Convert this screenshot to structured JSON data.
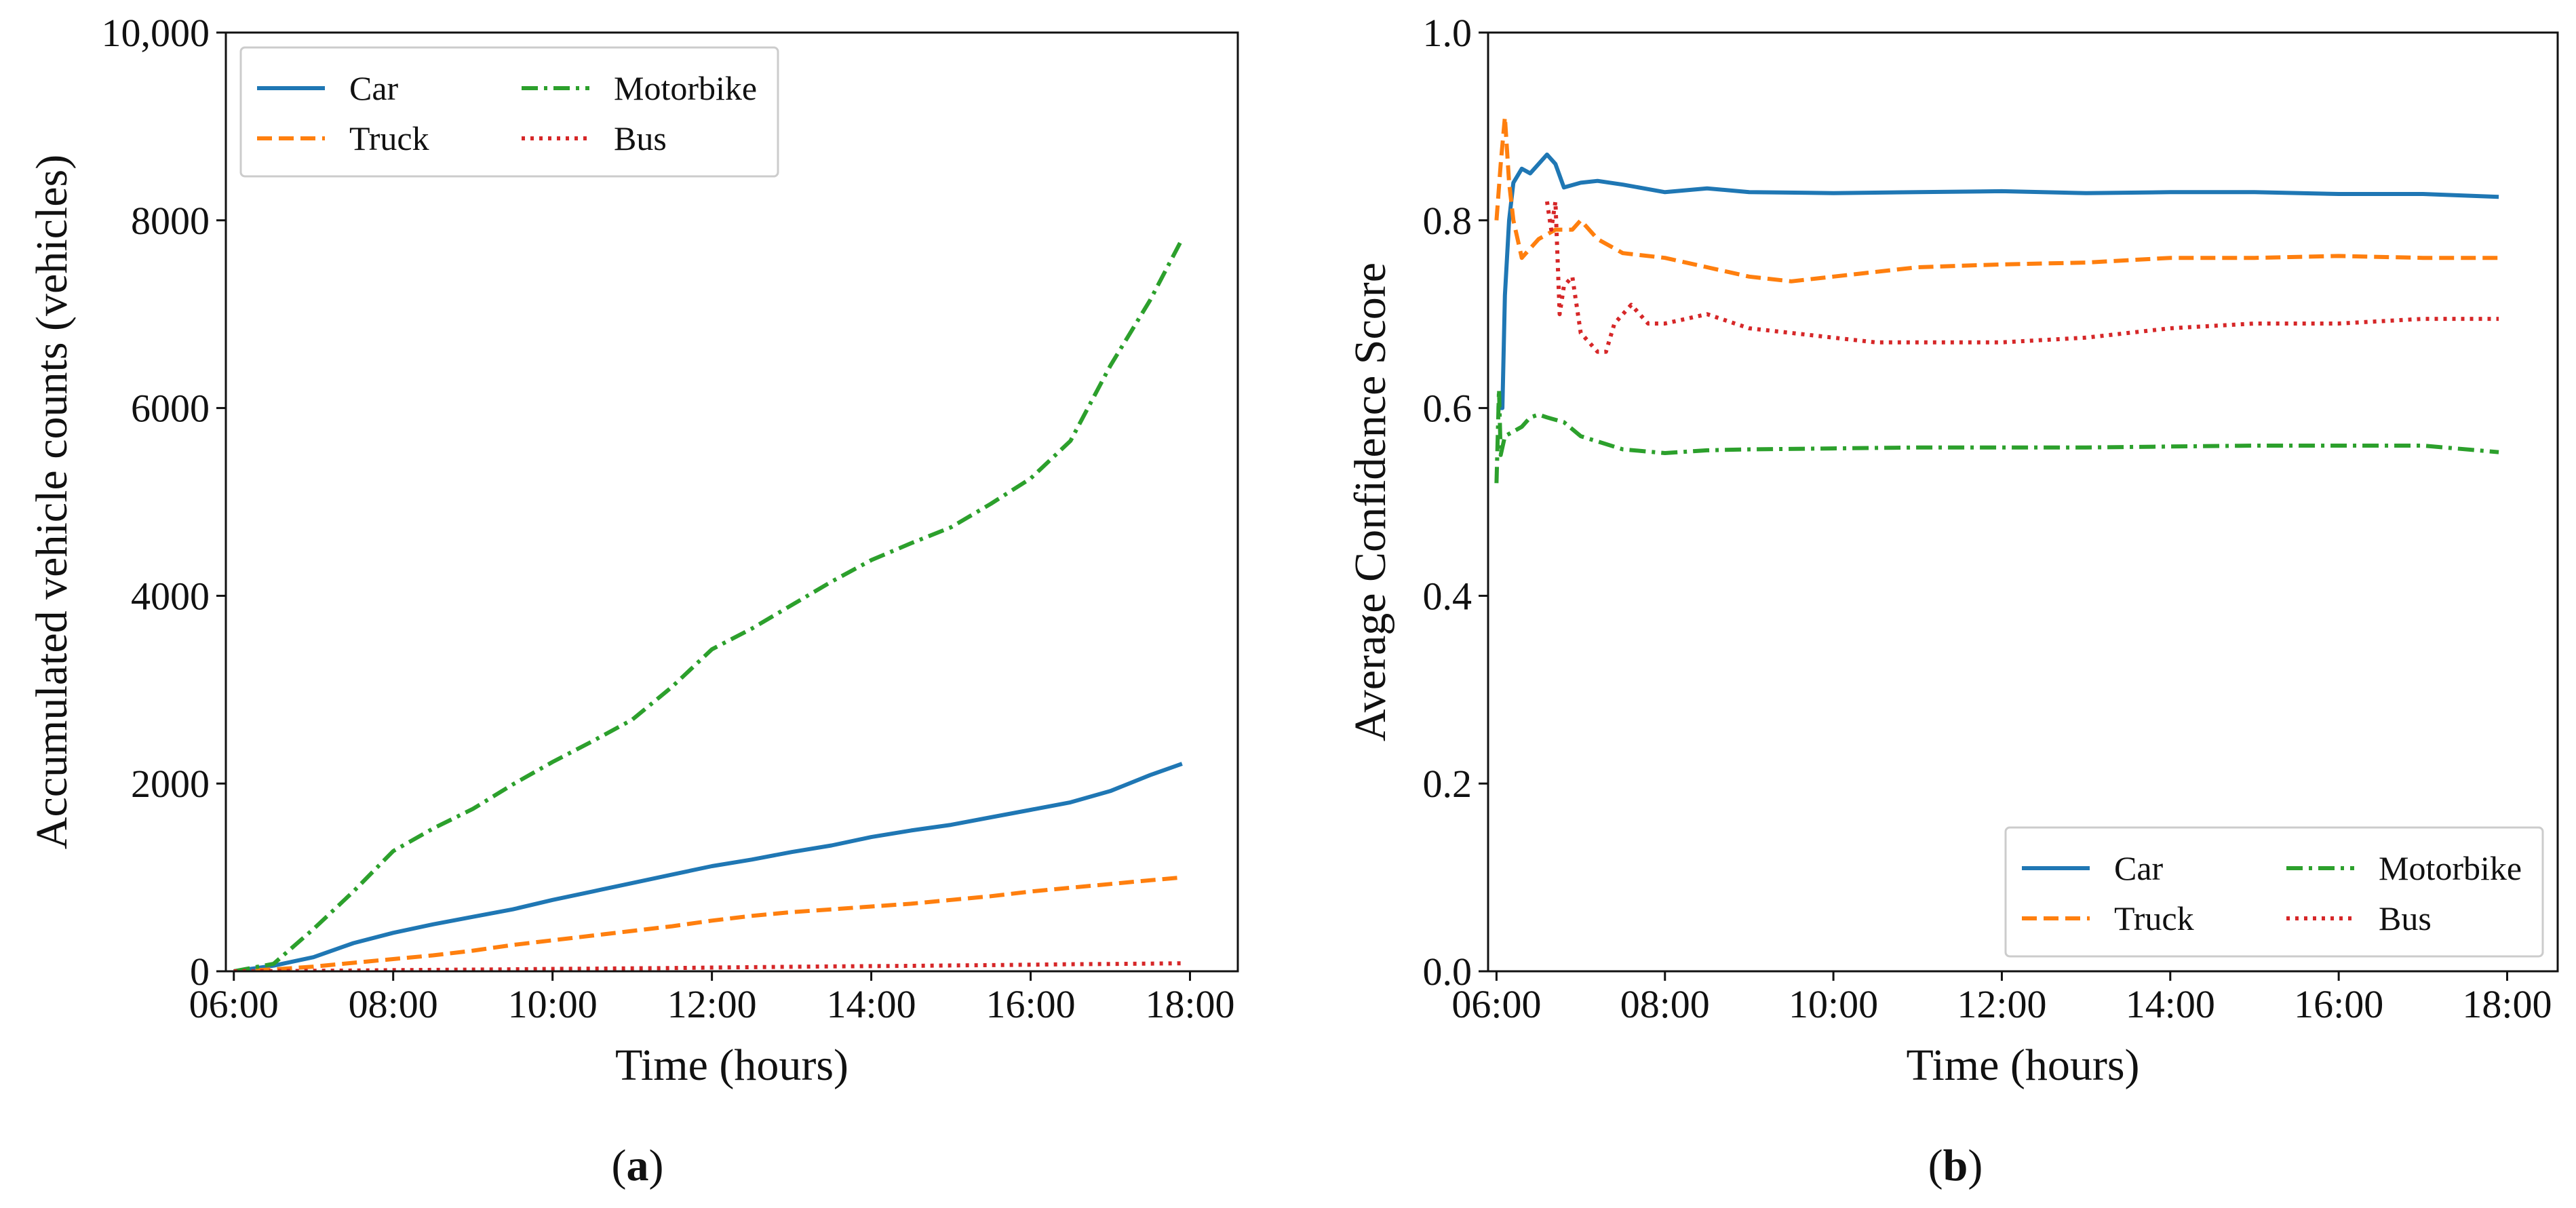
{
  "chart_data": [
    {
      "type": "line",
      "panel_label": "(a)",
      "panel_letter": "a",
      "xlabel": "Time (hours)",
      "ylabel": "Accumulated vehicle counts (vehicles)",
      "xlim": [
        5.9,
        18.6
      ],
      "ylim": [
        0,
        10000
      ],
      "xticks": [
        6,
        8,
        10,
        12,
        14,
        16,
        18
      ],
      "xtick_labels": [
        "06:00",
        "08:00",
        "10:00",
        "12:00",
        "14:00",
        "16:00",
        "18:00"
      ],
      "yticks": [
        0,
        2000,
        4000,
        6000,
        8000,
        10000
      ],
      "ytick_labels": [
        "0",
        "2000",
        "4000",
        "6000",
        "8000",
        "10,000"
      ],
      "legend_position": "upper-left",
      "legend_columns": 2,
      "series": [
        {
          "name": "Car",
          "color": "#1f77b4",
          "style": "solid",
          "x": [
            6.0,
            6.5,
            7.0,
            7.5,
            8.0,
            8.5,
            9.0,
            9.5,
            10.0,
            10.5,
            11.0,
            11.5,
            12.0,
            12.5,
            13.0,
            13.5,
            14.0,
            14.5,
            15.0,
            15.5,
            16.0,
            16.5,
            17.0,
            17.5,
            17.9
          ],
          "y": [
            0,
            60,
            150,
            300,
            410,
            500,
            580,
            660,
            760,
            850,
            940,
            1030,
            1120,
            1190,
            1270,
            1340,
            1430,
            1500,
            1560,
            1640,
            1720,
            1800,
            1920,
            2090,
            2210
          ]
        },
        {
          "name": "Truck",
          "color": "#ff7f0e",
          "style": "dashed",
          "x": [
            6.0,
            6.5,
            7.0,
            7.5,
            8.0,
            8.5,
            9.0,
            9.5,
            10.0,
            10.5,
            11.0,
            11.5,
            12.0,
            12.5,
            13.0,
            13.5,
            14.0,
            14.5,
            15.0,
            15.5,
            16.0,
            16.5,
            17.0,
            17.5,
            17.9
          ],
          "y": [
            0,
            20,
            50,
            90,
            130,
            170,
            220,
            280,
            330,
            380,
            430,
            480,
            540,
            590,
            630,
            660,
            690,
            720,
            760,
            800,
            850,
            890,
            930,
            970,
            1000
          ]
        },
        {
          "name": "Motorbike",
          "color": "#2ca02c",
          "style": "dashdot",
          "x": [
            6.0,
            6.5,
            7.0,
            7.5,
            8.0,
            8.5,
            9.0,
            9.5,
            10.0,
            10.5,
            11.0,
            11.5,
            12.0,
            12.5,
            13.0,
            13.5,
            14.0,
            14.5,
            15.0,
            15.5,
            16.0,
            16.5,
            17.0,
            17.5,
            17.9
          ],
          "y": [
            0,
            80,
            450,
            850,
            1280,
            1520,
            1730,
            1990,
            2230,
            2450,
            2680,
            3030,
            3430,
            3650,
            3900,
            4150,
            4380,
            4560,
            4730,
            4980,
            5250,
            5650,
            6450,
            7150,
            7800
          ]
        },
        {
          "name": "Bus",
          "color": "#d62728",
          "style": "dotted",
          "x": [
            6.0,
            6.5,
            7.0,
            7.5,
            8.0,
            8.5,
            9.0,
            9.5,
            10.0,
            10.5,
            11.0,
            11.5,
            12.0,
            12.5,
            13.0,
            13.5,
            14.0,
            14.5,
            15.0,
            15.5,
            16.0,
            16.5,
            17.0,
            17.5,
            17.9
          ],
          "y": [
            0,
            2,
            5,
            8,
            12,
            15,
            18,
            21,
            25,
            28,
            32,
            35,
            40,
            44,
            48,
            52,
            55,
            58,
            62,
            66,
            70,
            75,
            78,
            82,
            85
          ]
        }
      ]
    },
    {
      "type": "line",
      "panel_label": "(b)",
      "panel_letter": "b",
      "xlabel": "Time (hours)",
      "ylabel": "Average Confidence Score",
      "xlim": [
        5.9,
        18.6
      ],
      "ylim": [
        0.0,
        1.0
      ],
      "xticks": [
        6,
        8,
        10,
        12,
        14,
        16,
        18
      ],
      "xtick_labels": [
        "06:00",
        "08:00",
        "10:00",
        "12:00",
        "14:00",
        "16:00",
        "18:00"
      ],
      "yticks": [
        0.0,
        0.2,
        0.4,
        0.6,
        0.8,
        1.0
      ],
      "ytick_labels": [
        "0.0",
        "0.2",
        "0.4",
        "0.6",
        "0.8",
        "1.0"
      ],
      "legend_position": "lower-right",
      "legend_columns": 2,
      "series": [
        {
          "name": "Car",
          "color": "#1f77b4",
          "style": "solid",
          "x": [
            6.0,
            6.07,
            6.1,
            6.15,
            6.2,
            6.3,
            6.4,
            6.5,
            6.6,
            6.7,
            6.8,
            7.0,
            7.2,
            7.5,
            8.0,
            8.5,
            9.0,
            10.0,
            11.0,
            12.0,
            13.0,
            14.0,
            15.0,
            16.0,
            17.0,
            17.9
          ],
          "y": [
            0.6,
            0.6,
            0.72,
            0.8,
            0.84,
            0.855,
            0.85,
            0.86,
            0.87,
            0.86,
            0.835,
            0.84,
            0.842,
            0.838,
            0.83,
            0.834,
            0.83,
            0.829,
            0.83,
            0.831,
            0.829,
            0.83,
            0.83,
            0.828,
            0.828,
            0.825
          ]
        },
        {
          "name": "Truck",
          "color": "#ff7f0e",
          "style": "dashed",
          "x": [
            6.0,
            6.05,
            6.1,
            6.15,
            6.2,
            6.3,
            6.4,
            6.5,
            6.7,
            6.9,
            7.0,
            7.2,
            7.5,
            8.0,
            8.5,
            9.0,
            9.5,
            10.0,
            11.0,
            12.0,
            13.0,
            14.0,
            15.0,
            16.0,
            17.0,
            17.9
          ],
          "y": [
            0.8,
            0.86,
            0.91,
            0.84,
            0.8,
            0.76,
            0.77,
            0.78,
            0.79,
            0.79,
            0.8,
            0.78,
            0.765,
            0.76,
            0.75,
            0.74,
            0.735,
            0.74,
            0.75,
            0.753,
            0.755,
            0.76,
            0.76,
            0.762,
            0.76,
            0.76
          ]
        },
        {
          "name": "Motorbike",
          "color": "#2ca02c",
          "style": "dashdot",
          "x": [
            6.0,
            6.03,
            6.05,
            6.1,
            6.2,
            6.3,
            6.4,
            6.5,
            6.6,
            6.8,
            7.0,
            7.5,
            8.0,
            8.5,
            9.0,
            10.0,
            11.0,
            12.0,
            13.0,
            14.0,
            15.0,
            16.0,
            17.0,
            17.9
          ],
          "y": [
            0.52,
            0.62,
            0.55,
            0.57,
            0.575,
            0.58,
            0.59,
            0.593,
            0.59,
            0.585,
            0.57,
            0.556,
            0.552,
            0.555,
            0.556,
            0.557,
            0.558,
            0.558,
            0.558,
            0.559,
            0.56,
            0.56,
            0.56,
            0.553
          ]
        },
        {
          "name": "Bus",
          "color": "#d62728",
          "style": "dotted",
          "x": [
            6.6,
            6.65,
            6.7,
            6.75,
            6.8,
            6.9,
            7.0,
            7.1,
            7.2,
            7.3,
            7.4,
            7.6,
            7.8,
            8.0,
            8.5,
            9.0,
            9.5,
            10.0,
            10.5,
            11.0,
            12.0,
            13.0,
            14.0,
            15.0,
            16.0,
            17.0,
            17.9
          ],
          "y": [
            0.82,
            0.79,
            0.82,
            0.7,
            0.73,
            0.74,
            0.68,
            0.67,
            0.66,
            0.66,
            0.69,
            0.71,
            0.69,
            0.69,
            0.7,
            0.685,
            0.68,
            0.675,
            0.67,
            0.67,
            0.67,
            0.675,
            0.685,
            0.69,
            0.69,
            0.695,
            0.695
          ]
        }
      ]
    }
  ]
}
